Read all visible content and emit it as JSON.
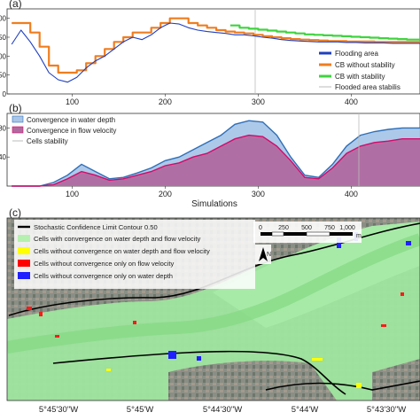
{
  "panel_a": {
    "label": "(a)",
    "yticks": [
      "00",
      "50",
      "00",
      "50",
      "0"
    ],
    "legend": [
      "Flooding area",
      "CB without stability",
      "CB with stability",
      "Flooded area stabilis"
    ],
    "colors": {
      "flood": "#1f3fbf",
      "cb_without": "#f07d1e",
      "cb_with": "#3fd43f",
      "stab_line": "#bbbbbb"
    }
  },
  "panel_b": {
    "label": "(b)",
    "yticks": [
      "80",
      "40"
    ],
    "legend": [
      "Convergence in water depth",
      "Convergence in flow velocity",
      "Cells stability"
    ],
    "colors": {
      "depth_fill": "#a9c6e8",
      "depth_line": "#2f6fb8",
      "vel_fill": "#b06aa0",
      "vel_line": "#d40a6a",
      "stab_line": "#bbbbbb"
    }
  },
  "x_ticks": [
    "100",
    "200",
    "300",
    "400"
  ],
  "xlabel": "Simulations",
  "panel_c": {
    "label": "(c)",
    "legend": [
      "Stochastic Confidence Limit Contour 0.50",
      "Cells with convergence on water depth and flow velocity",
      "Cells without convergence on water depth and flow velocity",
      "Cells without convergence only on flow velocity",
      "Cells without convergence only on water depth"
    ],
    "legend_colors": [
      "#000000",
      "#b6f0b0",
      "#ffff00",
      "#ff0000",
      "#1f1fff"
    ],
    "scalebar_labels": [
      "0",
      "250",
      "500",
      "750",
      "1,000"
    ],
    "scalebar_unit": "m",
    "north_label": "N",
    "lon_labels": [
      "5°45'30\"W",
      "5°45'W",
      "5°44'30\"W",
      "5°44'W",
      "5°43'30\"W"
    ]
  },
  "chart_data": [
    {
      "type": "line",
      "x_range": [
        30,
        474
      ],
      "y_range": [
        0,
        180
      ],
      "series": [
        {
          "name": "Flooding area",
          "x": [
            35,
            45,
            55,
            65,
            75,
            85,
            95,
            105,
            115,
            125,
            135,
            145,
            155,
            165,
            175,
            185,
            195,
            205,
            215,
            225,
            235,
            245,
            255,
            265,
            275,
            285,
            295,
            305,
            315,
            325,
            335,
            345,
            355,
            365,
            375,
            385,
            395,
            405,
            415,
            425,
            435,
            445,
            455,
            465,
            474
          ],
          "y": [
            105,
            135,
            110,
            80,
            45,
            30,
            25,
            35,
            55,
            70,
            80,
            95,
            110,
            120,
            115,
            125,
            140,
            150,
            148,
            140,
            135,
            132,
            130,
            128,
            125,
            125,
            123,
            120,
            118,
            115,
            113,
            112,
            111,
            110,
            110,
            110,
            109,
            109,
            108,
            108,
            108,
            107,
            107,
            107,
            107
          ]
        },
        {
          "name": "CB without stability",
          "x": [
            35,
            45,
            55,
            65,
            75,
            85,
            95,
            105,
            115,
            125,
            135,
            145,
            155,
            165,
            175,
            185,
            195,
            205,
            215,
            225,
            235,
            245,
            255,
            265,
            275,
            285,
            295,
            305,
            315,
            325,
            335,
            345,
            355,
            365,
            375,
            385,
            395,
            405,
            415,
            425,
            435,
            445,
            455,
            465,
            474
          ],
          "y": [
            150,
            150,
            130,
            100,
            60,
            45,
            45,
            50,
            65,
            80,
            95,
            110,
            120,
            130,
            130,
            140,
            150,
            160,
            160,
            150,
            145,
            140,
            135,
            132,
            130,
            128,
            125,
            122,
            120,
            118,
            116,
            115,
            114,
            113,
            112,
            112,
            111,
            111,
            111,
            110,
            110,
            110,
            110,
            110,
            110
          ]
        },
        {
          "name": "CB with stability",
          "x": [
            270,
            280,
            290,
            300,
            310,
            320,
            330,
            340,
            350,
            360,
            370,
            380,
            390,
            400,
            410,
            420,
            430,
            440,
            450,
            460,
            474
          ],
          "y": [
            145,
            140,
            138,
            136,
            134,
            132,
            130,
            128,
            126,
            125,
            124,
            123,
            122,
            121,
            120,
            119,
            118,
            117,
            116,
            115,
            114
          ]
        }
      ]
    },
    {
      "type": "area",
      "x_range": [
        30,
        474
      ],
      "y_range": [
        0,
        100
      ],
      "series": [
        {
          "name": "Convergence in water depth",
          "x": [
            35,
            50,
            65,
            80,
            95,
            110,
            125,
            140,
            155,
            170,
            185,
            200,
            215,
            230,
            245,
            260,
            275,
            290,
            305,
            320,
            335,
            350,
            365,
            380,
            395,
            410,
            425,
            440,
            455,
            474
          ],
          "y": [
            0,
            0,
            0,
            5,
            15,
            30,
            20,
            10,
            12,
            18,
            25,
            35,
            40,
            50,
            60,
            70,
            85,
            90,
            88,
            70,
            40,
            15,
            12,
            30,
            55,
            70,
            75,
            78,
            80,
            80
          ]
        },
        {
          "name": "Convergence in flow velocity",
          "x": [
            35,
            50,
            65,
            80,
            95,
            110,
            125,
            140,
            155,
            170,
            185,
            200,
            215,
            230,
            245,
            260,
            275,
            290,
            305,
            320,
            335,
            350,
            365,
            380,
            395,
            410,
            425,
            440,
            455,
            474
          ],
          "y": [
            0,
            0,
            0,
            2,
            10,
            20,
            15,
            8,
            10,
            15,
            20,
            28,
            32,
            40,
            45,
            55,
            65,
            70,
            68,
            55,
            35,
            12,
            10,
            25,
            45,
            55,
            60,
            62,
            65,
            65
          ]
        }
      ]
    }
  ]
}
